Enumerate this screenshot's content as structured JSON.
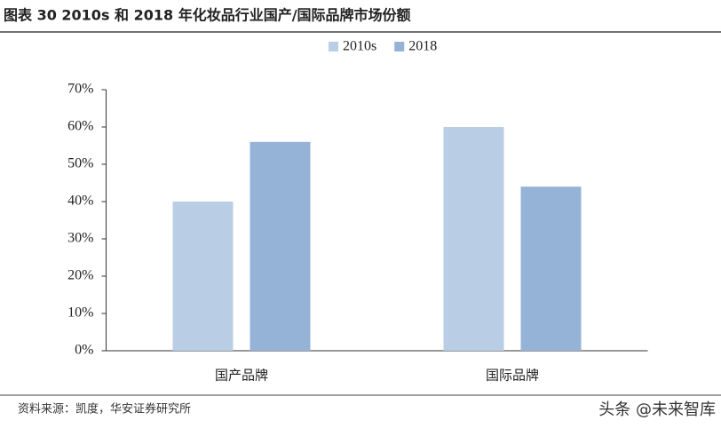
{
  "chart_data": {
    "type": "bar",
    "title": "图表 30 2010s 和 2018 年化妆品行业国产/国际品牌市场份额",
    "categories": [
      "国产品牌",
      "国际品牌"
    ],
    "series": [
      {
        "name": "2010s",
        "color": "#b9cde5",
        "values": [
          40,
          60
        ]
      },
      {
        "name": "2018",
        "color": "#95b3d7",
        "values": [
          56,
          44
        ]
      }
    ],
    "ylim": [
      0,
      70
    ],
    "yticks": [
      {
        "value": 0,
        "label": "0%"
      },
      {
        "value": 10,
        "label": "10%"
      },
      {
        "value": 20,
        "label": "20%"
      },
      {
        "value": 30,
        "label": "30%"
      },
      {
        "value": 40,
        "label": "40%"
      },
      {
        "value": 50,
        "label": "50%"
      },
      {
        "value": 60,
        "label": "60%"
      },
      {
        "value": 70,
        "label": "70%"
      }
    ],
    "legend": "top",
    "source": "资料来源：凯度，华安证券研究所"
  },
  "watermark": "头条 @未来智库"
}
